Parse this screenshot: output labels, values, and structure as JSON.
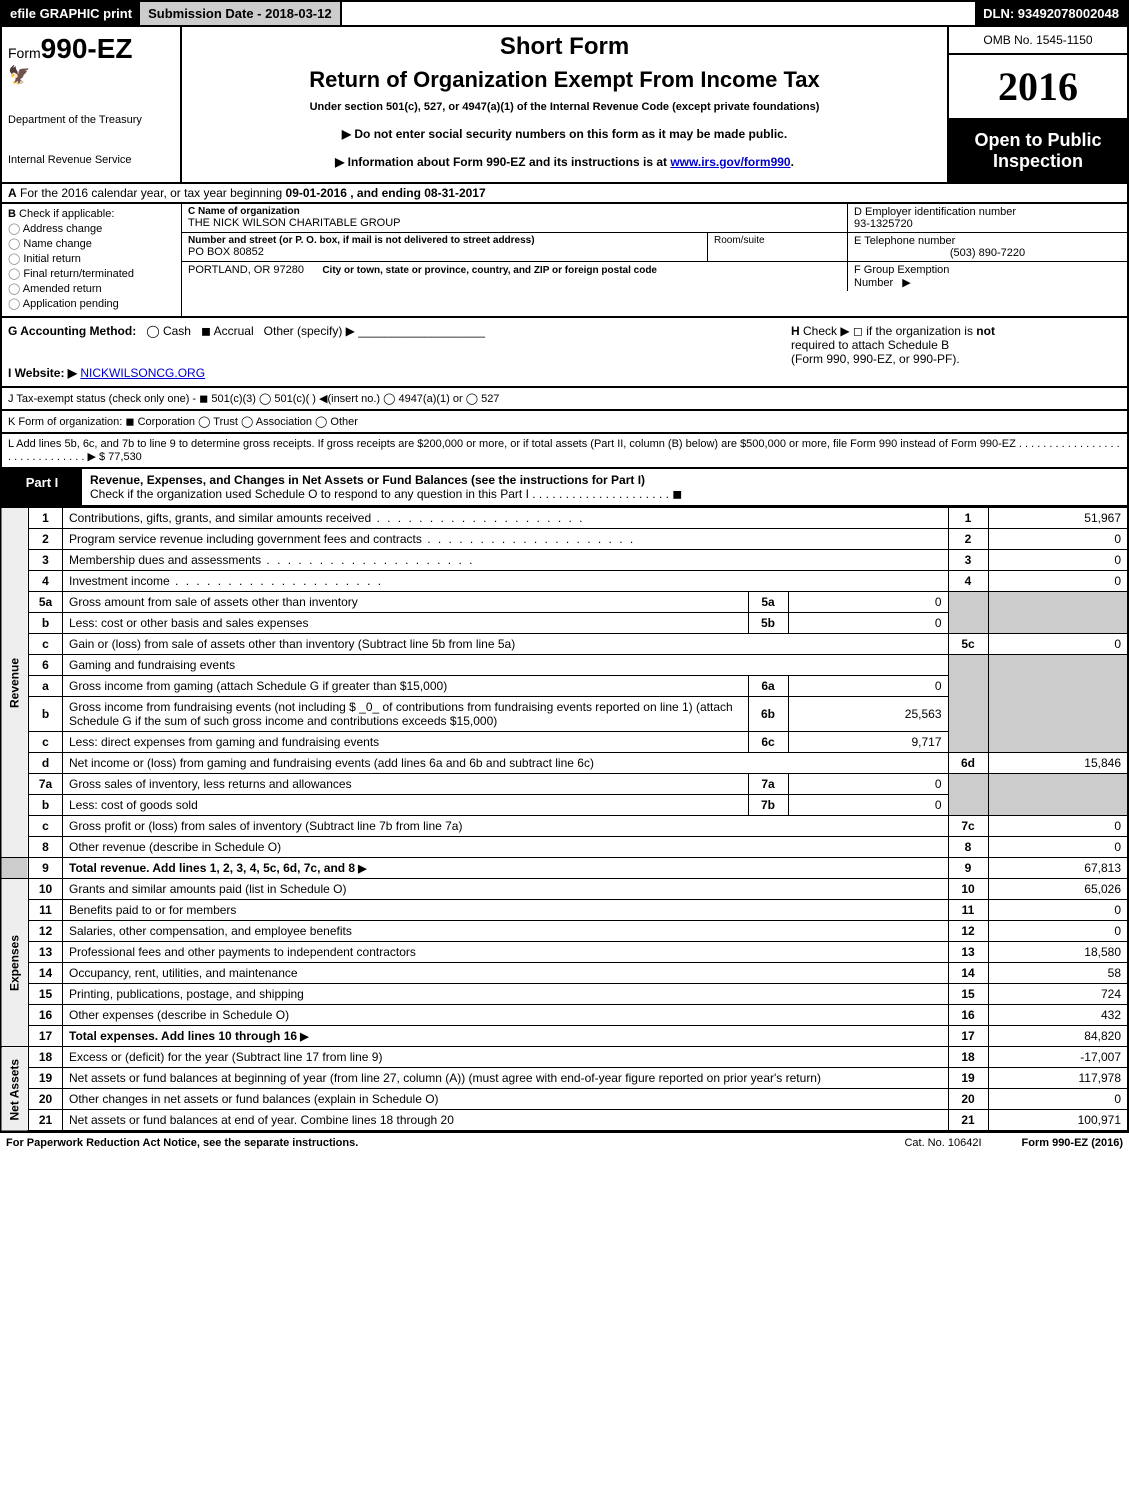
{
  "topbar": {
    "left": "efile GRAPHIC print",
    "mid": "Submission Date - 2018-03-12",
    "right": "DLN: 93492078002048"
  },
  "header": {
    "form_prefix": "Form",
    "form_number": "990-EZ",
    "dept1": "Department of the Treasury",
    "dept2": "Internal Revenue Service",
    "short_form": "Short Form",
    "return_title": "Return of Organization Exempt From Income Tax",
    "under_section": "Under section 501(c), 527, or 4947(a)(1) of the Internal Revenue Code (except private foundations)",
    "instr1": "Do not enter social security numbers on this form as it may be made public.",
    "instr2_pre": "Information about Form 990-EZ and its instructions is at ",
    "instr2_link": "www.irs.gov/form990",
    "instr2_post": ".",
    "omb": "OMB No. 1545-1150",
    "year": "2016",
    "open1": "Open to Public",
    "open2": "Inspection"
  },
  "rowA": {
    "label_A": "A",
    "text1": "For the 2016 calendar year, or tax year beginning ",
    "begin": "09-01-2016",
    "text2": ", and ending ",
    "end": "08-31-2017"
  },
  "B": {
    "label": "B",
    "check_if": "Check if applicable:",
    "opts": [
      "Address change",
      "Name change",
      "Initial return",
      "Final return/terminated",
      "Amended return",
      "Application pending"
    ]
  },
  "C": {
    "label": "C Name of organization",
    "name": "THE NICK WILSON CHARITABLE GROUP",
    "street_label": "Number and street (or P. O. box, if mail is not delivered to street address)",
    "street": "PO BOX 80852",
    "room_label": "Room/suite",
    "city_label": "City or town, state or province, country, and ZIP or foreign postal code",
    "city": "PORTLAND, OR  97280"
  },
  "D": {
    "label": "D Employer identification number",
    "value": "93-1325720"
  },
  "E": {
    "label": "E Telephone number",
    "value": "(503) 890-7220"
  },
  "F": {
    "label": "F Group Exemption",
    "label2": "Number",
    "arrow": "▶"
  },
  "G": {
    "label": "G Accounting Method:",
    "cash": "Cash",
    "accrual": "Accrual",
    "other": "Other (specify) ▶"
  },
  "H": {
    "label": "H",
    "text1": "Check ▶  ◻  if the organization is ",
    "not": "not",
    "text2": "required to attach Schedule B",
    "text3": "(Form 990, 990-EZ, or 990-PF)."
  },
  "I": {
    "label": "I Website: ▶",
    "value": "NICKWILSONCG.ORG"
  },
  "J": {
    "text": "J Tax-exempt status (check only one) -  ◼ 501(c)(3)  ◯ 501(c)(  ) ◀(insert no.)  ◯ 4947(a)(1) or  ◯ 527"
  },
  "K": {
    "text": "K Form of organization:  ◼ Corporation  ◯ Trust  ◯ Association  ◯ Other"
  },
  "L": {
    "text": "L Add lines 5b, 6c, and 7b to line 9 to determine gross receipts. If gross receipts are $200,000 or more, or if total assets (Part II, column (B) below) are $500,000 or more, file Form 990 instead of Form 990-EZ . . . . . . . . . . . . . . . . . . . . . . . . . . . . . . ▶",
    "amount": "$ 77,530"
  },
  "part1": {
    "label": "Part I",
    "title": "Revenue, Expenses, and Changes in Net Assets or Fund Balances (see the instructions for Part I)",
    "check": "Check if the organization used Schedule O to respond to any question in this Part I . . . . . . . . . . . . . . . . . . . . .  ◼"
  },
  "side": {
    "revenue": "Revenue",
    "expenses": "Expenses",
    "netassets": "Net Assets"
  },
  "lines": {
    "l1": {
      "n": "1",
      "d": "Contributions, gifts, grants, and similar amounts received",
      "r": "1",
      "v": "51,967"
    },
    "l2": {
      "n": "2",
      "d": "Program service revenue including government fees and contracts",
      "r": "2",
      "v": "0"
    },
    "l3": {
      "n": "3",
      "d": "Membership dues and assessments",
      "r": "3",
      "v": "0"
    },
    "l4": {
      "n": "4",
      "d": "Investment income",
      "r": "4",
      "v": "0"
    },
    "l5a": {
      "n": "5a",
      "d": "Gross amount from sale of assets other than inventory",
      "sr": "5a",
      "sv": "0"
    },
    "l5b": {
      "n": "b",
      "d": "Less: cost or other basis and sales expenses",
      "sr": "5b",
      "sv": "0"
    },
    "l5c": {
      "n": "c",
      "d": "Gain or (loss) from sale of assets other than inventory (Subtract line 5b from line 5a)",
      "r": "5c",
      "v": "0"
    },
    "l6": {
      "n": "6",
      "d": "Gaming and fundraising events"
    },
    "l6a": {
      "n": "a",
      "d": "Gross income from gaming (attach Schedule G if greater than $15,000)",
      "sr": "6a",
      "sv": "0"
    },
    "l6b": {
      "n": "b",
      "d": "Gross income from fundraising events (not including $ _0_ of contributions from fundraising events reported on line 1) (attach Schedule G if the sum of such gross income and contributions exceeds $15,000)",
      "sr": "6b",
      "sv": "25,563"
    },
    "l6c": {
      "n": "c",
      "d": "Less: direct expenses from gaming and fundraising events",
      "sr": "6c",
      "sv": "9,717"
    },
    "l6d": {
      "n": "d",
      "d": "Net income or (loss) from gaming and fundraising events (add lines 6a and 6b and subtract line 6c)",
      "r": "6d",
      "v": "15,846"
    },
    "l7a": {
      "n": "7a",
      "d": "Gross sales of inventory, less returns and allowances",
      "sr": "7a",
      "sv": "0"
    },
    "l7b": {
      "n": "b",
      "d": "Less: cost of goods sold",
      "sr": "7b",
      "sv": "0"
    },
    "l7c": {
      "n": "c",
      "d": "Gross profit or (loss) from sales of inventory (Subtract line 7b from line 7a)",
      "r": "7c",
      "v": "0"
    },
    "l8": {
      "n": "8",
      "d": "Other revenue (describe in Schedule O)",
      "r": "8",
      "v": "0"
    },
    "l9": {
      "n": "9",
      "d": "Total revenue. Add lines 1, 2, 3, 4, 5c, 6d, 7c, and 8",
      "r": "9",
      "v": "67,813"
    },
    "l10": {
      "n": "10",
      "d": "Grants and similar amounts paid (list in Schedule O)",
      "r": "10",
      "v": "65,026"
    },
    "l11": {
      "n": "11",
      "d": "Benefits paid to or for members",
      "r": "11",
      "v": "0"
    },
    "l12": {
      "n": "12",
      "d": "Salaries, other compensation, and employee benefits",
      "r": "12",
      "v": "0"
    },
    "l13": {
      "n": "13",
      "d": "Professional fees and other payments to independent contractors",
      "r": "13",
      "v": "18,580"
    },
    "l14": {
      "n": "14",
      "d": "Occupancy, rent, utilities, and maintenance",
      "r": "14",
      "v": "58"
    },
    "l15": {
      "n": "15",
      "d": "Printing, publications, postage, and shipping",
      "r": "15",
      "v": "724"
    },
    "l16": {
      "n": "16",
      "d": "Other expenses (describe in Schedule O)",
      "r": "16",
      "v": "432"
    },
    "l17": {
      "n": "17",
      "d": "Total expenses. Add lines 10 through 16",
      "r": "17",
      "v": "84,820"
    },
    "l18": {
      "n": "18",
      "d": "Excess or (deficit) for the year (Subtract line 17 from line 9)",
      "r": "18",
      "v": "-17,007"
    },
    "l19": {
      "n": "19",
      "d": "Net assets or fund balances at beginning of year (from line 27, column (A)) (must agree with end-of-year figure reported on prior year's return)",
      "r": "19",
      "v": "117,978"
    },
    "l20": {
      "n": "20",
      "d": "Other changes in net assets or fund balances (explain in Schedule O)",
      "r": "20",
      "v": "0"
    },
    "l21": {
      "n": "21",
      "d": "Net assets or fund balances at end of year. Combine lines 18 through 20",
      "r": "21",
      "v": "100,971"
    }
  },
  "footer": {
    "left": "For Paperwork Reduction Act Notice, see the separate instructions.",
    "mid": "Cat. No. 10642I",
    "right": "Form 990-EZ (2016)"
  }
}
